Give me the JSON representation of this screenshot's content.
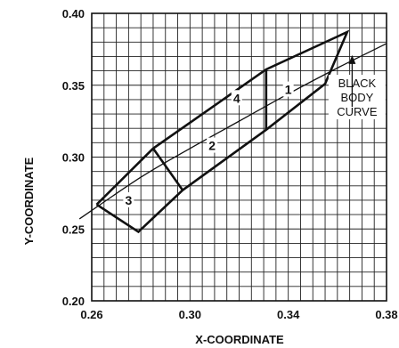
{
  "chart_data": {
    "type": "line",
    "xlabel": "X-COORDINATE",
    "ylabel": "Y-COORDINATE",
    "xlim": [
      0.26,
      0.38
    ],
    "ylim": [
      0.2,
      0.4
    ],
    "x_minor_step": 0.005,
    "y_minor_step": 0.01,
    "grid": true,
    "x_ticks": [
      {
        "value": 0.26,
        "label": "0.26"
      },
      {
        "value": 0.3,
        "label": "0.30"
      },
      {
        "value": 0.34,
        "label": "0.34"
      },
      {
        "value": 0.38,
        "label": "0.38"
      }
    ],
    "y_ticks": [
      {
        "value": 0.2,
        "label": "0.20"
      },
      {
        "value": 0.25,
        "label": "0.25"
      },
      {
        "value": 0.3,
        "label": "0.30"
      },
      {
        "value": 0.35,
        "label": "0.35"
      },
      {
        "value": 0.4,
        "label": "0.40"
      }
    ],
    "black_body_curve": [
      [
        0.255,
        0.257
      ],
      [
        0.28,
        0.286
      ],
      [
        0.3,
        0.306
      ],
      [
        0.32,
        0.325
      ],
      [
        0.34,
        0.344
      ],
      [
        0.36,
        0.362
      ],
      [
        0.38,
        0.379
      ]
    ],
    "outline": [
      [
        0.262,
        0.267
      ],
      [
        0.279,
        0.248
      ],
      [
        0.297,
        0.277
      ],
      [
        0.331,
        0.319
      ],
      [
        0.355,
        0.351
      ],
      [
        0.364,
        0.387
      ],
      [
        0.331,
        0.361
      ],
      [
        0.285,
        0.306
      ],
      [
        0.262,
        0.267
      ]
    ],
    "dividers": [
      [
        [
          0.285,
          0.306
        ],
        [
          0.297,
          0.277
        ]
      ],
      [
        [
          0.331,
          0.361
        ],
        [
          0.331,
          0.319
        ]
      ]
    ],
    "regions": [
      {
        "label": "1",
        "x": 0.34,
        "y": 0.347
      },
      {
        "label": "2",
        "x": 0.309,
        "y": 0.308
      },
      {
        "label": "3",
        "x": 0.275,
        "y": 0.27
      },
      {
        "label": "4",
        "x": 0.319,
        "y": 0.341
      }
    ],
    "annotation": {
      "lines": [
        "BLACK",
        "BODY",
        "CURVE"
      ],
      "x": 0.368,
      "y": 0.33,
      "arrow_from": [
        0.366,
        0.335
      ],
      "arrow_to": [
        0.366,
        0.371
      ]
    }
  }
}
